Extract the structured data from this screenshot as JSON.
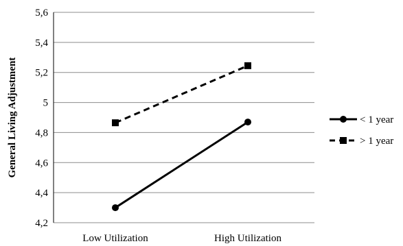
{
  "chart_data": {
    "type": "line",
    "title": "",
    "xlabel": "",
    "ylabel": "General Living Adjustment",
    "categories": [
      "Low Utilization",
      "High Utilization"
    ],
    "ylim": [
      4.2,
      5.6
    ],
    "yticks": [
      4.2,
      4.4,
      4.6,
      4.8,
      5.0,
      5.2,
      5.4,
      5.6
    ],
    "ytick_labels": [
      "4,2",
      "4,4",
      "4,6",
      "4,8",
      "5",
      "5,2",
      "5,4",
      "5,6"
    ],
    "grid": true,
    "legend_position": "right",
    "series": [
      {
        "name": "< 1 year",
        "values": [
          4.3,
          4.87
        ],
        "line_style": "solid",
        "marker": "circle",
        "color": "#000000"
      },
      {
        "name": "> 1 year",
        "values": [
          4.865,
          5.245
        ],
        "line_style": "dashed",
        "marker": "square",
        "color": "#000000"
      }
    ]
  },
  "colors": {
    "grid": "#8c8c8c",
    "axis": "#000000",
    "series": "#000000"
  }
}
